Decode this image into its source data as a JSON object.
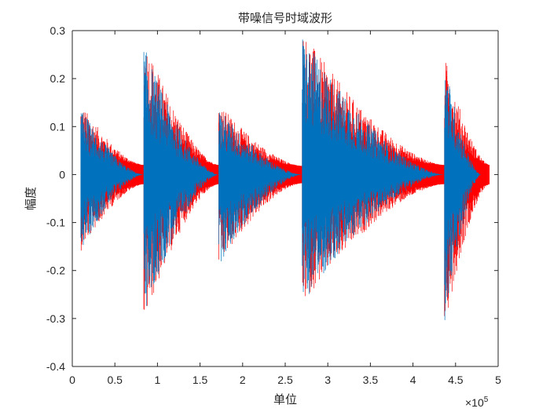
{
  "chart_data": {
    "type": "line",
    "title": "带噪信号时域波形",
    "xlabel": "单位",
    "ylabel": "幅度",
    "xlim": [
      0,
      500000
    ],
    "ylim": [
      -0.4,
      0.3
    ],
    "x_exponent_label": "×10",
    "x_exponent_power": "5",
    "x_ticks": [
      0,
      50000,
      100000,
      150000,
      200000,
      250000,
      300000,
      350000,
      400000,
      450000,
      500000
    ],
    "x_tick_labels": [
      "0",
      "0.5",
      "1",
      "1.5",
      "2",
      "2.5",
      "3",
      "3.5",
      "4",
      "4.5",
      "5"
    ],
    "y_ticks": [
      -0.4,
      -0.3,
      -0.2,
      -0.1,
      0,
      0.1,
      0.2,
      0.3
    ],
    "y_tick_labels": [
      "-0.4",
      "-0.3",
      "-0.2",
      "-0.1",
      "0",
      "0.1",
      "0.2",
      "0.3"
    ],
    "grid": false,
    "series": [
      {
        "color": "#ff0000",
        "description_of_shape": "noisy signal envelope",
        "segments": [
          {
            "x_start": 10000,
            "x_end": 84000,
            "peak_max": 0.15,
            "peak_min": -0.16,
            "floor": 0.02
          },
          {
            "x_start": 84000,
            "x_end": 172000,
            "peak_max": 0.29,
            "peak_min": -0.31,
            "floor": 0.02
          },
          {
            "x_start": 172000,
            "x_end": 270000,
            "peak_max": 0.15,
            "peak_min": -0.19,
            "floor": 0.018
          },
          {
            "x_start": 270000,
            "x_end": 437000,
            "peak_max": 0.3,
            "peak_min": -0.27,
            "floor": 0.02
          },
          {
            "x_start": 437000,
            "x_end": 490000,
            "peak_max": 0.25,
            "peak_min": -0.32,
            "floor": 0.02
          }
        ]
      },
      {
        "color": "#0072bd",
        "description_of_shape": "signal",
        "segments": [
          {
            "x_start": 10000,
            "x_end": 84000,
            "peak_max": 0.14,
            "peak_min": -0.16,
            "floor": 0.0
          },
          {
            "x_start": 84000,
            "x_end": 172000,
            "peak_max": 0.27,
            "peak_min": -0.3,
            "floor": 0.0
          },
          {
            "x_start": 172000,
            "x_end": 270000,
            "peak_max": 0.14,
            "peak_min": -0.19,
            "floor": 0.0
          },
          {
            "x_start": 270000,
            "x_end": 437000,
            "peak_max": 0.29,
            "peak_min": -0.27,
            "floor": 0.0
          },
          {
            "x_start": 437000,
            "x_end": 480000,
            "peak_max": 0.24,
            "peak_min": -0.32,
            "floor": 0.0
          }
        ]
      }
    ]
  }
}
